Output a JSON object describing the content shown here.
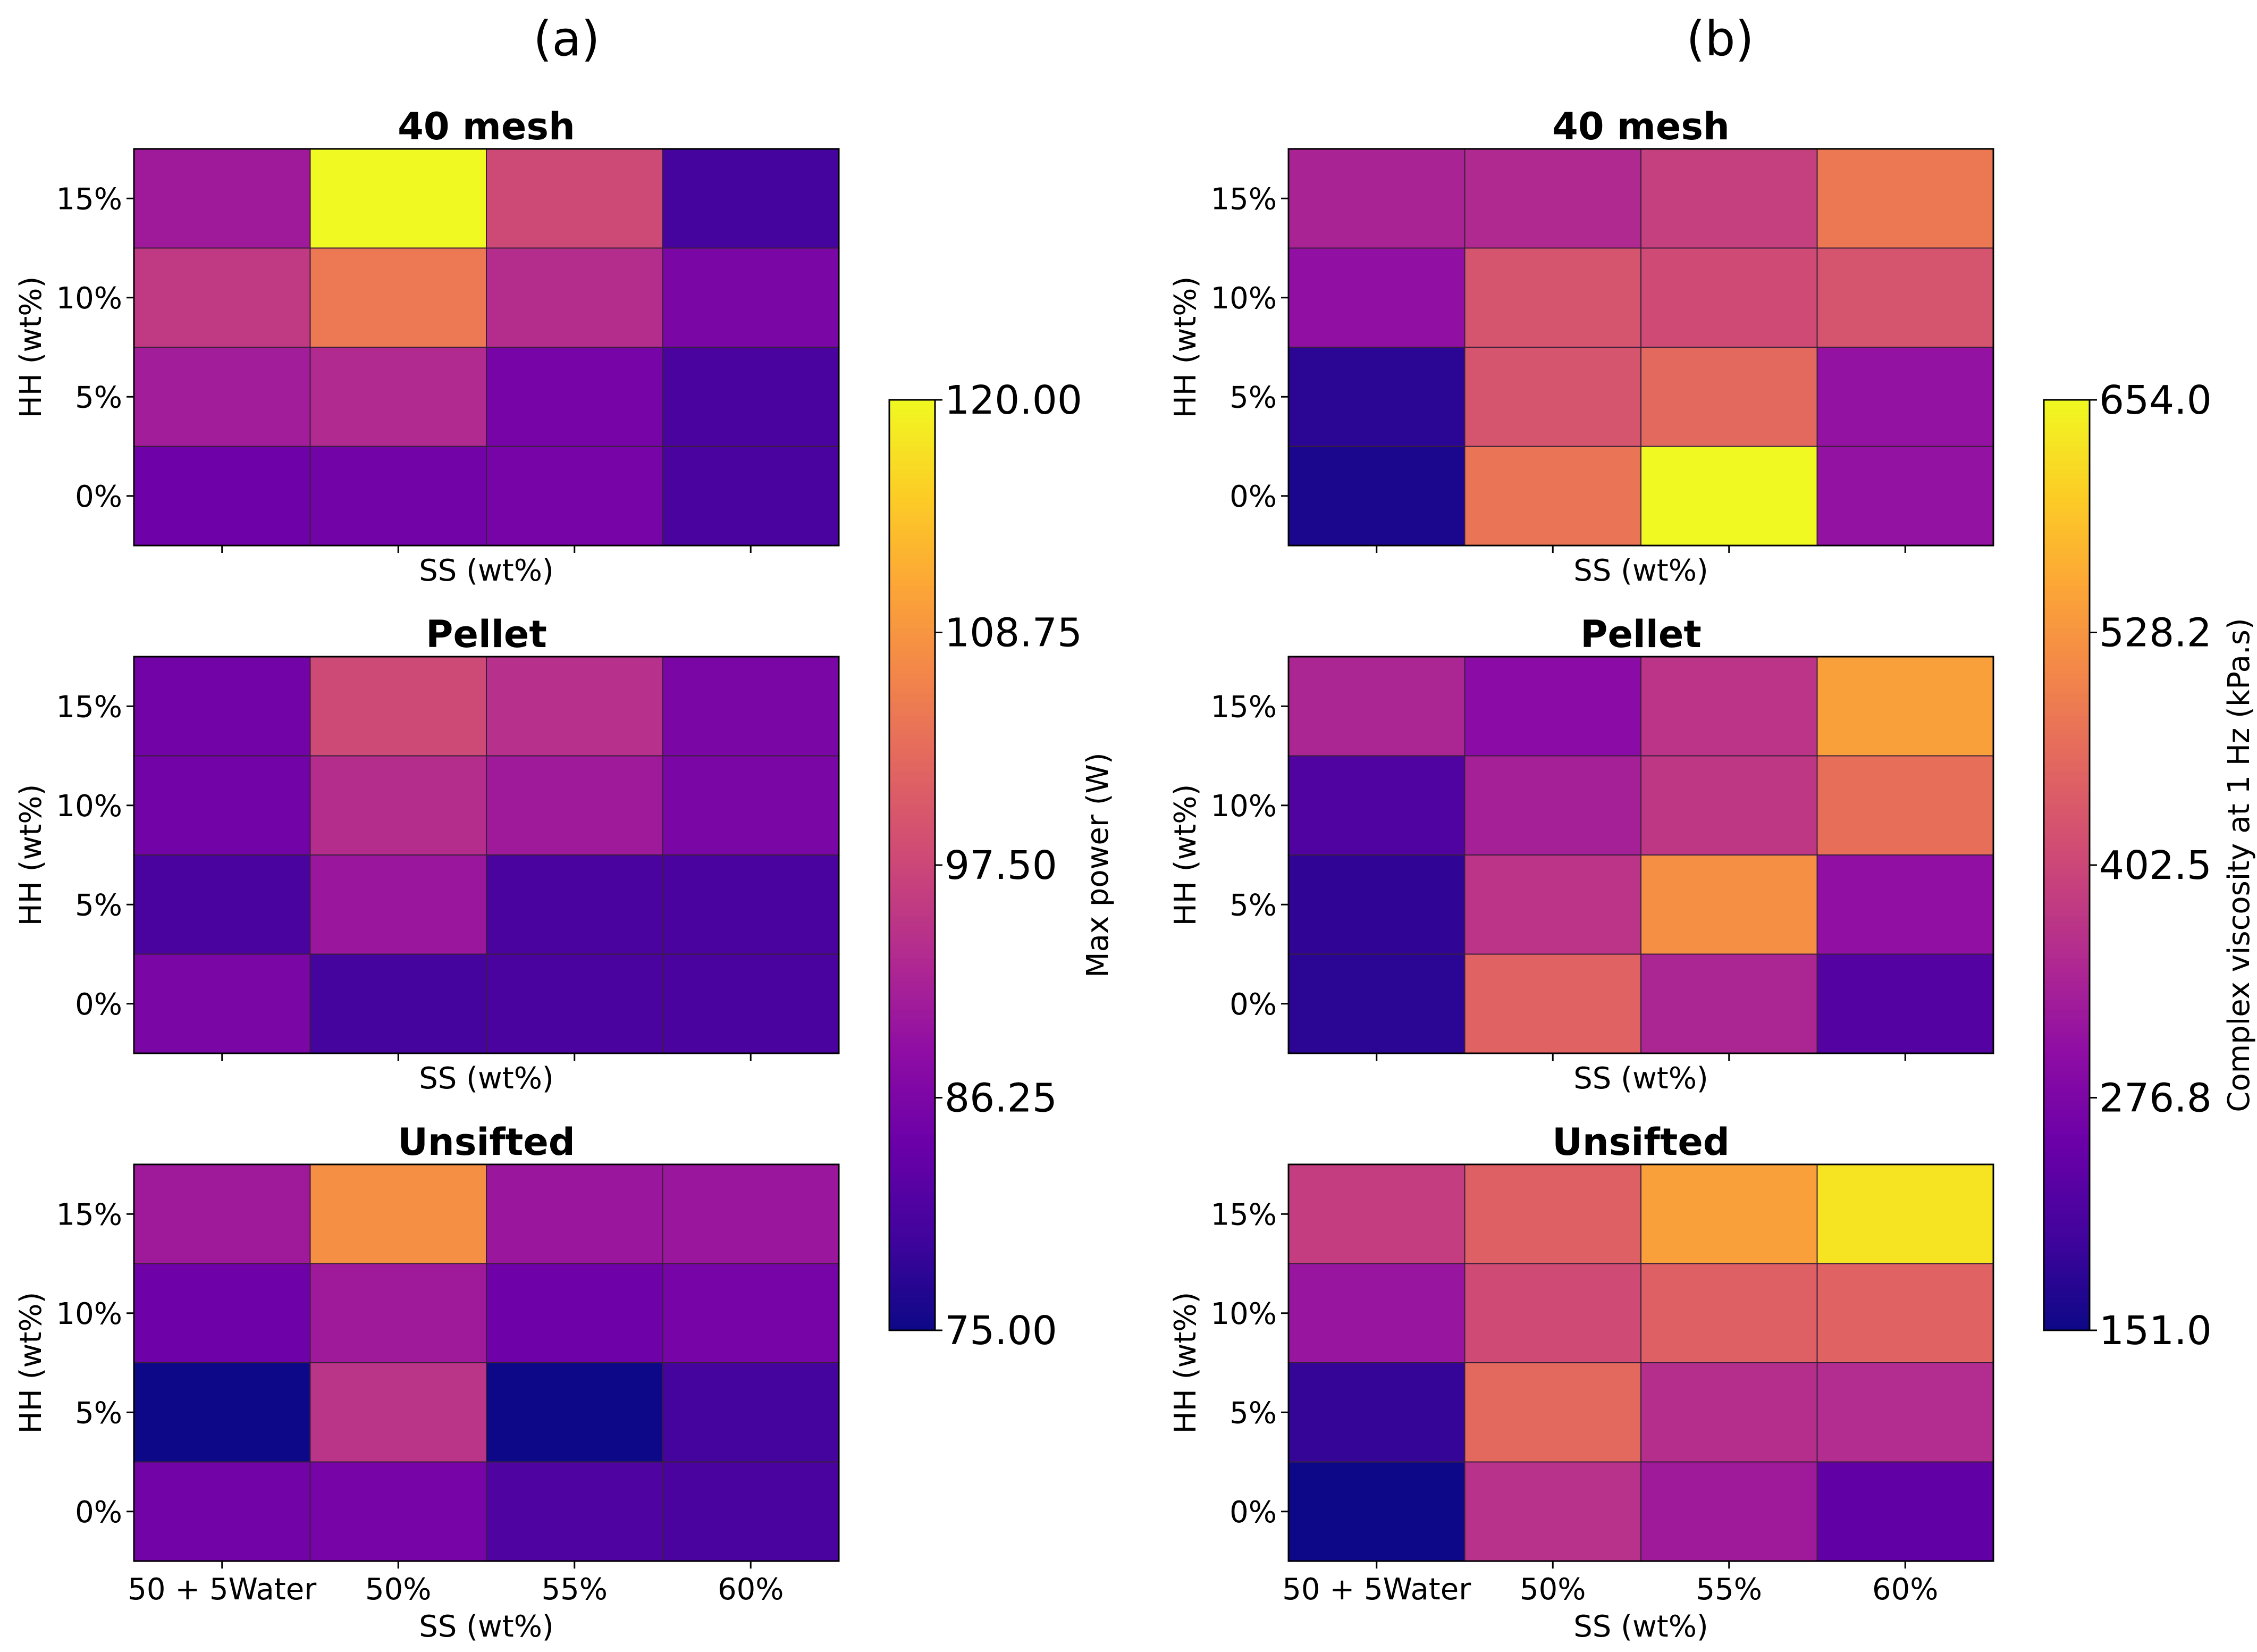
{
  "chart_data": [
    {
      "type": "heatmap",
      "panel_label": "(a)",
      "colormap": "plasma",
      "x_categories": [
        "50 + 5Water",
        "50%",
        "55%",
        "60%"
      ],
      "y_categories": [
        "15%",
        "10%",
        "5%",
        "0%"
      ],
      "xlabel": "SS (wt%)",
      "ylabel": "HH (wt%)",
      "colorbar": {
        "label": "Max power (W)",
        "range": [
          75.0,
          120.0
        ],
        "ticks": [
          "120.00",
          "108.75",
          "97.50",
          "86.25",
          "75.00"
        ]
      },
      "subplots": [
        {
          "title": "40 mesh",
          "values": [
            [
              90.5,
              120.0,
              98.0,
              80.0
            ],
            [
              95.5,
              105.0,
              93.5,
              86.0
            ],
            [
              91.0,
              93.0,
              85.5,
              80.5
            ],
            [
              84.5,
              85.0,
              85.5,
              80.5
            ]
          ]
        },
        {
          "title": "Pellet",
          "values": [
            [
              85.0,
              98.0,
              94.0,
              86.0
            ],
            [
              85.0,
              93.5,
              90.5,
              86.0
            ],
            [
              80.5,
              90.0,
              80.5,
              80.5
            ],
            [
              86.0,
              80.0,
              80.5,
              80.5
            ]
          ]
        },
        {
          "title": "Unsifted",
          "values": [
            [
              90.5,
              108.0,
              90.0,
              90.0
            ],
            [
              84.5,
              90.5,
              84.5,
              85.5
            ],
            [
              75.0,
              94.5,
              75.0,
              80.0
            ],
            [
              85.0,
              85.5,
              81.0,
              80.5
            ]
          ]
        }
      ]
    },
    {
      "type": "heatmap",
      "panel_label": "(b)",
      "colormap": "plasma",
      "x_categories": [
        "50 + 5Water",
        "50%",
        "55%",
        "60%"
      ],
      "y_categories": [
        "15%",
        "10%",
        "5%",
        "0%"
      ],
      "xlabel": "SS (wt%)",
      "ylabel": "HH (wt%)",
      "colorbar": {
        "label": "Complex viscosity at 1 Hz (kPa.s)",
        "range": [
          151.0,
          654.0
        ],
        "ticks": [
          "654.0",
          "528.2",
          "402.5",
          "276.8",
          "151.0"
        ]
      },
      "subplots": [
        {
          "title": "40 mesh",
          "values": [
            [
              340,
              350,
              390,
              485
            ],
            [
              305,
              425,
              410,
              425
            ],
            [
              180,
              425,
              460,
              310
            ],
            [
              165,
              480,
              654,
              310
            ]
          ]
        },
        {
          "title": "Pellet",
          "values": [
            [
              345,
              295,
              370,
              545
            ],
            [
              220,
              335,
              375,
              470
            ],
            [
              185,
              370,
              520,
              305
            ],
            [
              180,
              450,
              345,
              225
            ]
          ]
        },
        {
          "title": "Unsifted",
          "values": [
            [
              385,
              445,
              545,
              630
            ],
            [
              315,
              410,
              445,
              450
            ],
            [
              190,
              460,
              360,
              355
            ],
            [
              151,
              365,
              325,
              240
            ]
          ]
        }
      ]
    }
  ]
}
